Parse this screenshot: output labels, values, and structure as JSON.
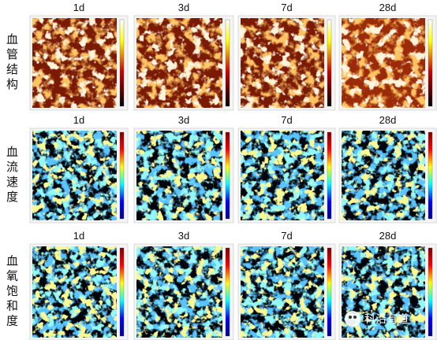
{
  "rows": [
    {
      "label": "血管结构",
      "columns": [
        "1d",
        "3d",
        "7d",
        "28d"
      ]
    },
    {
      "label": "血流速度",
      "columns": [
        "1d",
        "3d",
        "7d",
        "28d"
      ]
    },
    {
      "label": "血氧饱和度",
      "columns": [
        "1d",
        "3d",
        "7d",
        "28d"
      ]
    }
  ],
  "watermark": "科沿有道"
}
